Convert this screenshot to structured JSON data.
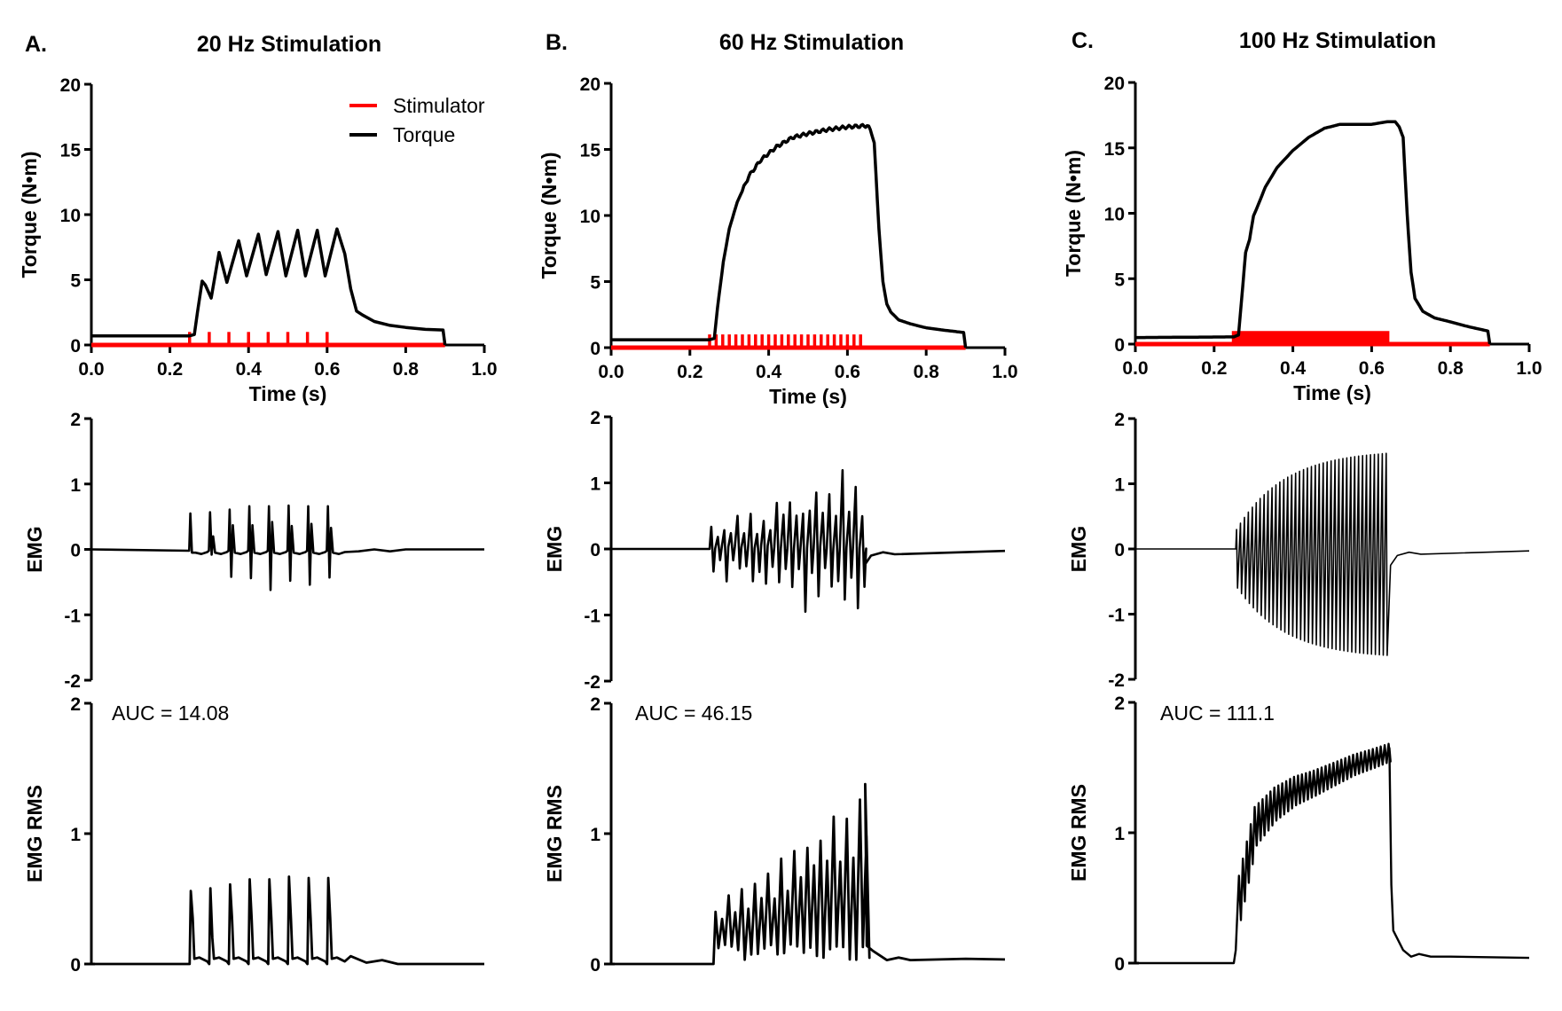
{
  "figure": {
    "panels": [
      {
        "letter": "A.",
        "title": "20 Hz Stimulation",
        "frequency_hz": 20,
        "auc_label": "AUC = 14.08"
      },
      {
        "letter": "B.",
        "title": "60 Hz Stimulation",
        "frequency_hz": 60,
        "auc_label": "AUC = 46.15"
      },
      {
        "letter": "C.",
        "title": "100 Hz Stimulation",
        "frequency_hz": 100,
        "auc_label": "AUC = 111.1"
      }
    ],
    "legend": {
      "items": [
        {
          "label": "Stimulator",
          "color": "#ff0000"
        },
        {
          "label": "Torque",
          "color": "#000000"
        }
      ]
    },
    "colors": {
      "stimulator": "#ff0000",
      "trace": "#000000",
      "axis": "#000000"
    }
  },
  "chart_data": [
    {
      "type": "line",
      "panel": "A",
      "title": "20 Hz Stimulation",
      "xlabel": "Time (s)",
      "ylabel": "Torque (N•m)",
      "xlim": [
        0,
        1.0
      ],
      "ylim": [
        0,
        20
      ],
      "xticks": [
        "0.0",
        "0.2",
        "0.4",
        "0.6",
        "0.8",
        "1.0"
      ],
      "yticks": [
        "0",
        "5",
        "10",
        "15",
        "20"
      ],
      "legend_position": "top-right",
      "stimulator": {
        "start": 0.25,
        "end": 0.6,
        "frequency_hz": 20,
        "pulse_times": [
          0.25,
          0.3,
          0.35,
          0.4,
          0.45,
          0.5,
          0.55,
          0.6
        ],
        "pulse_height": 1.0,
        "baseline_end": 0.9
      },
      "series": [
        {
          "name": "Torque",
          "x": [
            0,
            0.25,
            0.262,
            0.27,
            0.282,
            0.29,
            0.305,
            0.325,
            0.345,
            0.375,
            0.395,
            0.425,
            0.445,
            0.475,
            0.495,
            0.525,
            0.545,
            0.575,
            0.595,
            0.625,
            0.645,
            0.66,
            0.675,
            0.69,
            0.72,
            0.76,
            0.8,
            0.85,
            0.895,
            0.9
          ],
          "y": [
            0.7,
            0.7,
            0.8,
            2.5,
            4.9,
            4.6,
            3.6,
            7.1,
            4.8,
            8.0,
            5.3,
            8.5,
            5.4,
            8.7,
            5.3,
            8.8,
            5.3,
            8.8,
            5.3,
            8.9,
            7.0,
            4.3,
            2.6,
            2.3,
            1.8,
            1.5,
            1.35,
            1.2,
            1.15,
            0
          ]
        }
      ]
    },
    {
      "type": "line",
      "panel": "A",
      "ylabel": "EMG",
      "xlim": [
        0,
        1.0
      ],
      "ylim": [
        -2,
        2
      ],
      "yticks": [
        "-2",
        "-1",
        "0",
        "1",
        "2"
      ],
      "series": [
        {
          "name": "EMG",
          "pulse_times": [
            0.25,
            0.3,
            0.35,
            0.4,
            0.45,
            0.5,
            0.55,
            0.6
          ],
          "peak_pos": [
            0.55,
            0.57,
            0.61,
            0.66,
            0.66,
            0.67,
            0.66,
            0.66
          ],
          "peak_neg": [
            -0.05,
            -0.08,
            -0.42,
            -0.44,
            -0.62,
            -0.48,
            -0.54,
            -0.43
          ],
          "secondary_pos": [
            0.0,
            0.2,
            0.37,
            0.37,
            0.42,
            0.36,
            0.39,
            0.33
          ]
        }
      ]
    },
    {
      "type": "line",
      "panel": "A",
      "ylabel": "EMG  RMS",
      "xlim": [
        0,
        1.0
      ],
      "ylim": [
        0,
        2
      ],
      "yticks": [
        "0",
        "1",
        "2"
      ],
      "annotation": "AUC = 14.08",
      "series": [
        {
          "name": "EMG RMS",
          "pulse_times": [
            0.25,
            0.3,
            0.35,
            0.4,
            0.45,
            0.5,
            0.55,
            0.6
          ],
          "peaks": [
            0.56,
            0.58,
            0.61,
            0.65,
            0.65,
            0.67,
            0.66,
            0.66
          ]
        }
      ]
    },
    {
      "type": "line",
      "panel": "B",
      "title": "60 Hz Stimulation",
      "xlabel": "Time (s)",
      "ylabel": "Torque (N•m)",
      "xlim": [
        0,
        1.0
      ],
      "ylim": [
        0,
        20
      ],
      "xticks": [
        "0.0",
        "0.2",
        "0.4",
        "0.6",
        "0.8",
        "1.0"
      ],
      "yticks": [
        "0",
        "5",
        "10",
        "15",
        "20"
      ],
      "stimulator": {
        "start": 0.25,
        "end": 0.64,
        "frequency_hz": 60,
        "pulse_height": 1.0,
        "baseline_end": 0.9
      },
      "series": [
        {
          "name": "Torque",
          "x": [
            0,
            0.25,
            0.262,
            0.27,
            0.285,
            0.3,
            0.32,
            0.35,
            0.38,
            0.42,
            0.46,
            0.5,
            0.55,
            0.6,
            0.65,
            0.658,
            0.668,
            0.68,
            0.69,
            0.7,
            0.71,
            0.73,
            0.76,
            0.8,
            0.85,
            0.895,
            0.9
          ],
          "y": [
            0.6,
            0.6,
            0.7,
            3.0,
            6.5,
            9.0,
            11.0,
            13.0,
            14.2,
            15.2,
            15.9,
            16.2,
            16.5,
            16.7,
            16.8,
            16.5,
            15.5,
            9.0,
            5.0,
            3.3,
            2.7,
            2.1,
            1.8,
            1.5,
            1.3,
            1.15,
            0
          ]
        }
      ]
    },
    {
      "type": "line",
      "panel": "B",
      "ylabel": "EMG",
      "xlim": [
        0,
        1.0
      ],
      "ylim": [
        -2,
        2
      ],
      "yticks": [
        "-2",
        "-1",
        "0",
        "1",
        "2"
      ],
      "series": [
        {
          "name": "EMG",
          "burst_start": 0.25,
          "burst_end": 0.64,
          "max_pos": 1.36,
          "max_neg": -1.38,
          "baseline_after": -0.05
        }
      ]
    },
    {
      "type": "line",
      "panel": "B",
      "ylabel": "EMG  RMS",
      "xlim": [
        0,
        1.0
      ],
      "ylim": [
        0,
        2
      ],
      "yticks": [
        "0",
        "1",
        "2"
      ],
      "annotation": "AUC = 46.15",
      "series": [
        {
          "name": "EMG RMS",
          "burst_start": 0.26,
          "burst_end": 0.645,
          "max": 1.38,
          "baseline_after": 0.04
        }
      ]
    },
    {
      "type": "line",
      "panel": "C",
      "title": "100 Hz Stimulation",
      "xlabel": "Time (s)",
      "ylabel": "Torque (N•m)",
      "xlim": [
        0,
        1.0
      ],
      "ylim": [
        0,
        20
      ],
      "xticks": [
        "0.0",
        "0.2",
        "0.4",
        "0.6",
        "0.8",
        "1.0"
      ],
      "yticks": [
        "0",
        "5",
        "10",
        "15",
        "20"
      ],
      "stimulator": {
        "start": 0.245,
        "end": 0.645,
        "frequency_hz": 100,
        "pulse_height": 1.0,
        "baseline_end": 0.9
      },
      "series": [
        {
          "name": "Torque",
          "x": [
            0,
            0.25,
            0.262,
            0.27,
            0.28,
            0.29,
            0.3,
            0.31,
            0.33,
            0.36,
            0.4,
            0.44,
            0.48,
            0.52,
            0.56,
            0.6,
            0.64,
            0.66,
            0.67,
            0.68,
            0.69,
            0.7,
            0.71,
            0.73,
            0.76,
            0.8,
            0.85,
            0.895,
            0.9
          ],
          "y": [
            0.5,
            0.55,
            0.7,
            3.5,
            7.0,
            8.0,
            9.8,
            10.5,
            12.0,
            13.5,
            14.8,
            15.8,
            16.5,
            16.8,
            16.8,
            16.8,
            17.0,
            17.0,
            16.6,
            15.8,
            10.0,
            5.5,
            3.5,
            2.5,
            2.0,
            1.7,
            1.3,
            1.0,
            0
          ]
        }
      ]
    },
    {
      "type": "line",
      "panel": "C",
      "ylabel": "EMG",
      "xlim": [
        0,
        1.0
      ],
      "ylim": [
        -2,
        2
      ],
      "yticks": [
        "-2",
        "-1",
        "0",
        "1",
        "2"
      ],
      "series": [
        {
          "name": "EMG",
          "burst_start": 0.255,
          "burst_end": 0.645,
          "max_pos": 1.52,
          "max_neg": -1.68,
          "baseline_after": -0.05
        }
      ]
    },
    {
      "type": "line",
      "panel": "C",
      "ylabel": "EMG  RMS",
      "xlim": [
        0,
        1.0
      ],
      "ylim": [
        0,
        2
      ],
      "yticks": [
        "0",
        "1",
        "2"
      ],
      "annotation": "AUC = 111.1",
      "series": [
        {
          "name": "EMG RMS",
          "x": [
            0,
            0.25,
            0.255,
            0.26,
            0.3,
            0.35,
            0.4,
            0.45,
            0.5,
            0.55,
            0.6,
            0.645,
            0.65,
            0.66,
            0.68,
            0.7,
            0.72,
            0.75,
            0.8,
            0.9
          ],
          "y": [
            0,
            0,
            0.1,
            0.5,
            1.05,
            1.22,
            1.32,
            1.38,
            1.45,
            1.52,
            1.57,
            1.62,
            0.6,
            0.22,
            0.1,
            0.05,
            0.07,
            0.05,
            0.05,
            0.04
          ]
        }
      ]
    }
  ]
}
